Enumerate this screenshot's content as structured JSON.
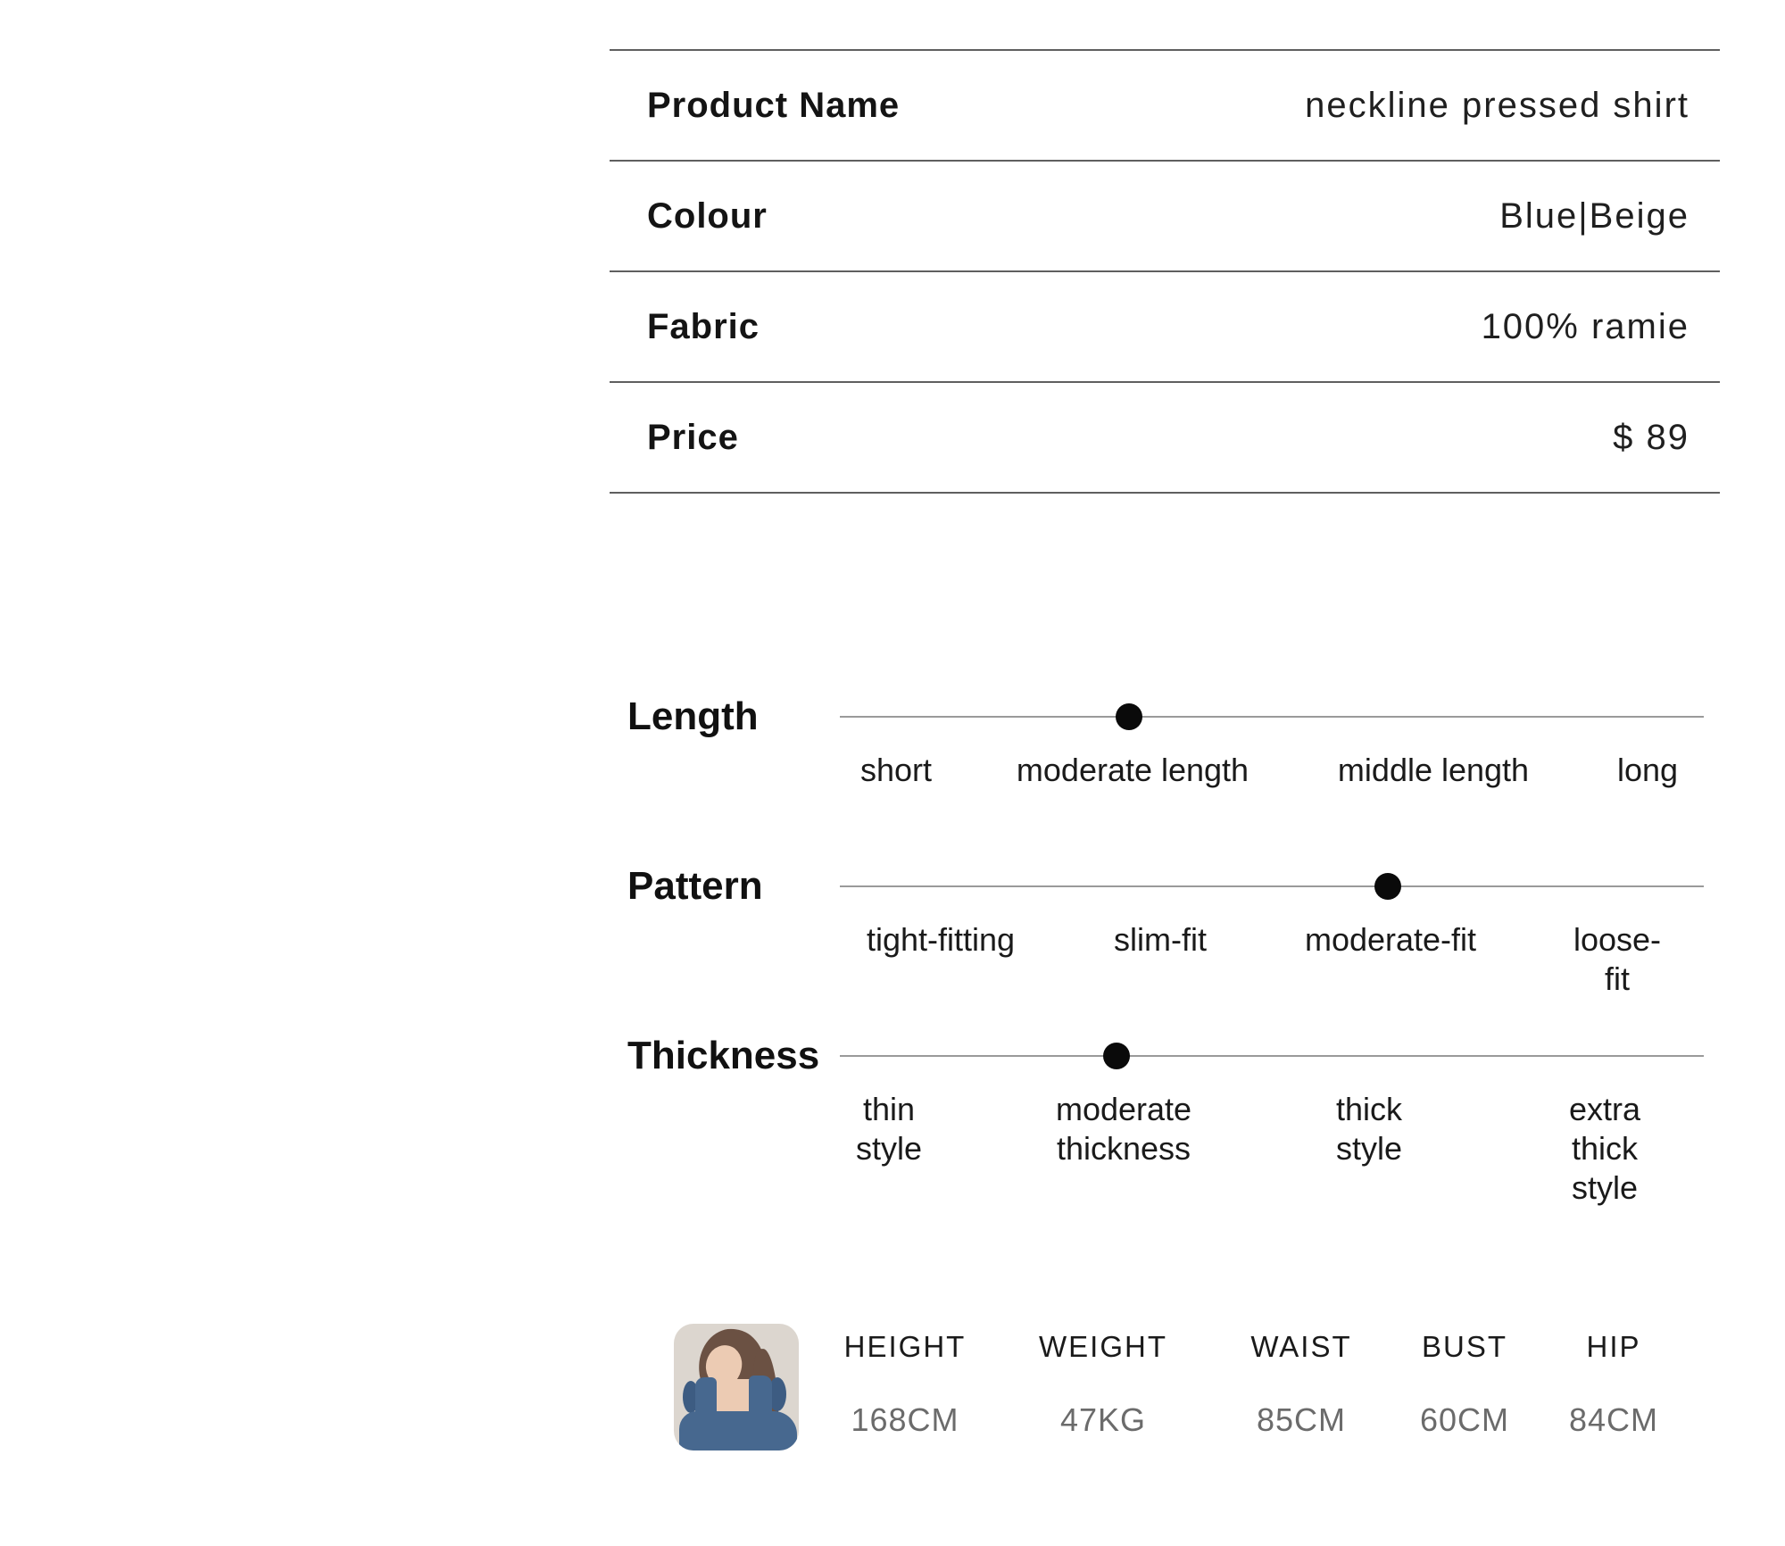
{
  "page": {
    "background": "#ffffff",
    "description": "product specification infographic"
  },
  "colors": {
    "table_line": "#5f5f5f",
    "slider_track": "#9a9a9a",
    "slider_dot": "#0a0a0a",
    "stat_value_gray": "#6b6b6b",
    "photo_background": "#dcd6cf",
    "dress_blue": "#47688f"
  },
  "product_table": {
    "rows": [
      {
        "label": "Product Name",
        "value": "neckline pressed shirt"
      },
      {
        "label": "Colour",
        "value": "Blue|Beige"
      },
      {
        "label": "Fabric",
        "value": "100% ramie"
      },
      {
        "label": "Price",
        "value": "$ 89"
      }
    ]
  },
  "sliders": [
    {
      "title": "Length",
      "options": [
        "short",
        "moderate length",
        "middle length",
        "long"
      ],
      "selected_index": 1,
      "selected_option": "moderate length"
    },
    {
      "title": "Pattern",
      "options": [
        "tight-fitting",
        "slim-fit",
        "moderate-fit",
        "loose-fit"
      ],
      "selected_index": 2,
      "selected_option": "moderate-fit"
    },
    {
      "title": "Thickness",
      "options": [
        "thin\nstyle",
        "moderate\nthickness",
        "thick\nstyle",
        "extra\nthick style"
      ],
      "selected_index": 1,
      "selected_option": "moderate thickness"
    }
  ],
  "model_info": {
    "photo": "model-wearing-blue-ruffle-strap-dress",
    "stats": [
      {
        "label": "HEIGHT",
        "value": "168CM"
      },
      {
        "label": "WEIGHT",
        "value": "47KG"
      },
      {
        "label": "WAIST",
        "value": "85CM"
      },
      {
        "label": "BUST",
        "value": "60CM"
      },
      {
        "label": "HIP",
        "value": "84CM"
      }
    ]
  }
}
